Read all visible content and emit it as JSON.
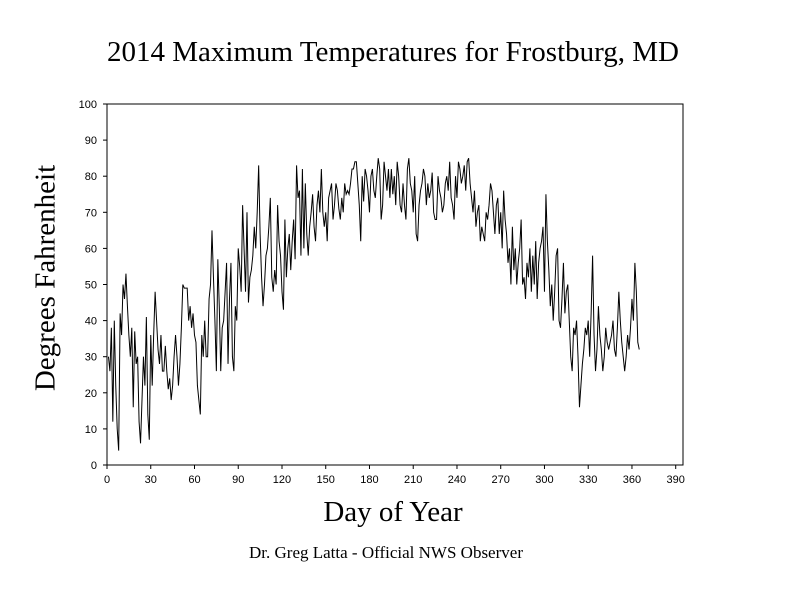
{
  "page": {
    "title": "2014 Maximum Temperatures for Frostburg, MD",
    "credit": "Dr. Greg Latta - Official NWS Observer"
  },
  "chart_data": {
    "type": "line",
    "title": "2014 Maximum Temperatures for Frostburg, MD",
    "xlabel": "Day of Year",
    "ylabel": "Degrees Fahrenheit",
    "xlim": [
      0,
      395
    ],
    "ylim": [
      0,
      100
    ],
    "x_ticks": [
      0,
      30,
      60,
      90,
      120,
      150,
      180,
      210,
      240,
      270,
      300,
      330,
      360,
      390
    ],
    "y_ticks": [
      0,
      10,
      20,
      30,
      40,
      50,
      60,
      70,
      80,
      90,
      100
    ],
    "grid": false,
    "legend": "none",
    "line_color": "#000000",
    "series": [
      {
        "x": [
          1,
          2,
          3,
          4,
          5,
          6,
          7,
          8,
          9,
          10,
          11,
          12,
          13,
          14,
          15,
          16,
          17,
          18,
          19,
          20,
          21,
          22,
          23,
          24,
          25,
          26,
          27,
          28,
          29,
          30,
          31,
          32,
          33,
          34,
          35,
          36,
          37,
          38,
          39,
          40,
          41,
          42,
          43,
          44,
          45,
          46,
          47,
          48,
          49,
          50,
          51,
          52,
          53,
          54,
          55,
          56,
          57,
          58,
          59,
          60,
          61,
          62,
          63,
          64,
          65,
          66,
          67,
          68,
          69,
          70,
          71,
          72,
          73,
          74,
          75,
          76,
          77,
          78,
          79,
          80,
          81,
          82,
          83,
          84,
          85,
          86,
          87,
          88,
          89,
          90,
          91,
          92,
          93,
          94,
          95,
          96,
          97,
          98,
          99,
          100,
          101,
          102,
          103,
          104,
          105,
          106,
          107,
          108,
          109,
          110,
          111,
          112,
          113,
          114,
          115,
          116,
          117,
          118,
          119,
          120,
          121,
          122,
          123,
          124,
          125,
          126,
          127,
          128,
          129,
          130,
          131,
          132,
          133,
          134,
          135,
          136,
          137,
          138,
          139,
          140,
          141,
          142,
          143,
          144,
          145,
          146,
          147,
          148,
          149,
          150,
          151,
          152,
          153,
          154,
          155,
          156,
          157,
          158,
          159,
          160,
          161,
          162,
          163,
          164,
          165,
          166,
          167,
          168,
          169,
          170,
          171,
          172,
          173,
          174,
          175,
          176,
          177,
          178,
          179,
          180,
          181,
          182,
          183,
          184,
          185,
          186,
          187,
          188,
          189,
          190,
          191,
          192,
          193,
          194,
          195,
          196,
          197,
          198,
          199,
          200,
          201,
          202,
          203,
          204,
          205,
          206,
          207,
          208,
          209,
          210,
          211,
          212,
          213,
          214,
          215,
          216,
          217,
          218,
          219,
          220,
          221,
          222,
          223,
          224,
          225,
          226,
          227,
          228,
          229,
          230,
          231,
          232,
          233,
          234,
          235,
          236,
          237,
          238,
          239,
          240,
          241,
          242,
          243,
          244,
          245,
          246,
          247,
          248,
          249,
          250,
          251,
          252,
          253,
          254,
          255,
          256,
          257,
          258,
          259,
          260,
          261,
          262,
          263,
          264,
          265,
          266,
          267,
          268,
          269,
          270,
          271,
          272,
          273,
          274,
          275,
          276,
          277,
          278,
          279,
          280,
          281,
          282,
          283,
          284,
          285,
          286,
          287,
          288,
          289,
          290,
          291,
          292,
          293,
          294,
          295,
          296,
          297,
          298,
          299,
          300,
          301,
          302,
          303,
          304,
          305,
          306,
          307,
          308,
          309,
          310,
          311,
          312,
          313,
          314,
          315,
          316,
          317,
          318,
          319,
          320,
          321,
          322,
          323,
          324,
          325,
          326,
          327,
          328,
          329,
          330,
          331,
          332,
          333,
          334,
          335,
          336,
          337,
          338,
          339,
          340,
          341,
          342,
          343,
          344,
          345,
          346,
          347,
          348,
          349,
          350,
          351,
          352,
          353,
          354,
          355,
          356,
          357,
          358,
          359,
          360,
          361,
          362,
          363,
          364,
          365
        ],
        "values": [
          30,
          26,
          38,
          12,
          40,
          22,
          10,
          4,
          42,
          36,
          50,
          46,
          53,
          44,
          36,
          30,
          38,
          16,
          37,
          28,
          30,
          12,
          6,
          18,
          30,
          22,
          41,
          14,
          7,
          36,
          22,
          36,
          48,
          40,
          32,
          28,
          36,
          26,
          26,
          33,
          26,
          21,
          24,
          18,
          22,
          30,
          36,
          30,
          22,
          28,
          38,
          50,
          49,
          49,
          49,
          40,
          44,
          38,
          42,
          36,
          34,
          22,
          18,
          14,
          36,
          30,
          40,
          30,
          30,
          46,
          50,
          65,
          52,
          40,
          26,
          57,
          44,
          26,
          38,
          40,
          48,
          56,
          28,
          46,
          56,
          30,
          26,
          44,
          40,
          60,
          55,
          48,
          72,
          60,
          48,
          70,
          45,
          52,
          54,
          58,
          66,
          60,
          70,
          83,
          64,
          52,
          44,
          50,
          58,
          60,
          66,
          74,
          52,
          48,
          54,
          50,
          72,
          62,
          58,
          48,
          43,
          68,
          52,
          60,
          64,
          54,
          62,
          68,
          57,
          83,
          74,
          76,
          58,
          82,
          60,
          78,
          64,
          58,
          66,
          70,
          75,
          66,
          62,
          72,
          76,
          70,
          82,
          70,
          66,
          70,
          62,
          74,
          76,
          78,
          68,
          72,
          78,
          76,
          71,
          68,
          74,
          70,
          78,
          75,
          76,
          75,
          78,
          82,
          82,
          84,
          84,
          78,
          72,
          62,
          80,
          73,
          82,
          80,
          76,
          70,
          80,
          82,
          76,
          74,
          80,
          85,
          82,
          68,
          72,
          84,
          80,
          76,
          82,
          74,
          82,
          75,
          80,
          72,
          84,
          80,
          72,
          70,
          78,
          72,
          68,
          82,
          85,
          78,
          76,
          70,
          80,
          64,
          62,
          72,
          76,
          78,
          82,
          80,
          72,
          78,
          74,
          76,
          81,
          70,
          68,
          68,
          80,
          76,
          74,
          70,
          72,
          78,
          80,
          76,
          84,
          74,
          72,
          68,
          80,
          74,
          84,
          82,
          78,
          80,
          83,
          76,
          84,
          85,
          78,
          74,
          70,
          76,
          66,
          70,
          72,
          62,
          66,
          64,
          62,
          70,
          68,
          72,
          78,
          76,
          70,
          64,
          72,
          74,
          64,
          70,
          60,
          76,
          68,
          64,
          56,
          60,
          50,
          66,
          54,
          60,
          50,
          56,
          60,
          68,
          50,
          52,
          46,
          56,
          52,
          60,
          48,
          58,
          50,
          62,
          46,
          56,
          60,
          62,
          66,
          48,
          75,
          62,
          54,
          44,
          50,
          40,
          48,
          58,
          60,
          40,
          38,
          46,
          56,
          42,
          48,
          50,
          40,
          30,
          26,
          38,
          36,
          40,
          30,
          16,
          22,
          28,
          32,
          38,
          36,
          40,
          30,
          42,
          58,
          36,
          26,
          32,
          44,
          36,
          32,
          26,
          30,
          38,
          34,
          32,
          34,
          36,
          40,
          32,
          30,
          38,
          48,
          40,
          34,
          30,
          26,
          30,
          36,
          32,
          38,
          46,
          40,
          56,
          48,
          34,
          32
        ]
      }
    ]
  }
}
